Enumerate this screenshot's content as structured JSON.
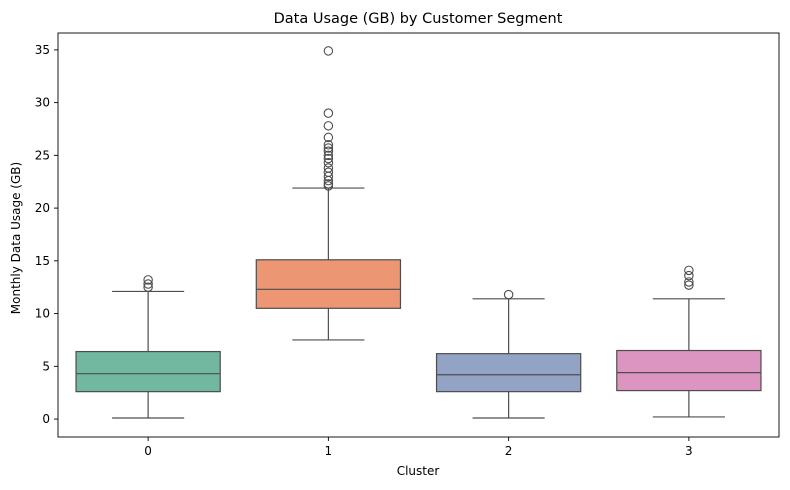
{
  "chart_data": {
    "type": "box",
    "title": "Data Usage (GB) by Customer Segment",
    "xlabel": "Cluster",
    "ylabel": "Monthly Data Usage (GB)",
    "categories": [
      "0",
      "1",
      "2",
      "3"
    ],
    "ylim": [
      -1.7,
      36.6
    ],
    "yticks": [
      0,
      5,
      10,
      15,
      20,
      25,
      30,
      35
    ],
    "grid": false,
    "legend": "none",
    "boxes": [
      {
        "category": "0",
        "color": "#72b7a0",
        "whisker_low": 0.1,
        "q1": 2.6,
        "median": 4.3,
        "q3": 6.4,
        "whisker_high": 12.1,
        "outliers": [
          12.5,
          12.8,
          13.2
        ]
      },
      {
        "category": "1",
        "color": "#ec9674",
        "whisker_low": 7.5,
        "q1": 10.5,
        "median": 12.3,
        "q3": 15.1,
        "whisker_high": 21.9,
        "outliers": [
          22.1,
          22.3,
          22.6,
          23.0,
          23.4,
          23.8,
          24.3,
          24.7,
          25.0,
          25.4,
          25.7,
          26.0,
          26.7,
          27.8,
          29.0,
          34.9
        ]
      },
      {
        "category": "2",
        "color": "#92a3c6",
        "whisker_low": 0.1,
        "q1": 2.6,
        "median": 4.2,
        "q3": 6.2,
        "whisker_high": 11.4,
        "outliers": [
          11.8
        ]
      },
      {
        "category": "3",
        "color": "#dc94c0",
        "whisker_low": 0.2,
        "q1": 2.7,
        "median": 4.4,
        "q3": 6.5,
        "whisker_high": 11.4,
        "outliers": [
          12.7,
          13.0,
          13.6,
          14.1
        ]
      }
    ]
  }
}
